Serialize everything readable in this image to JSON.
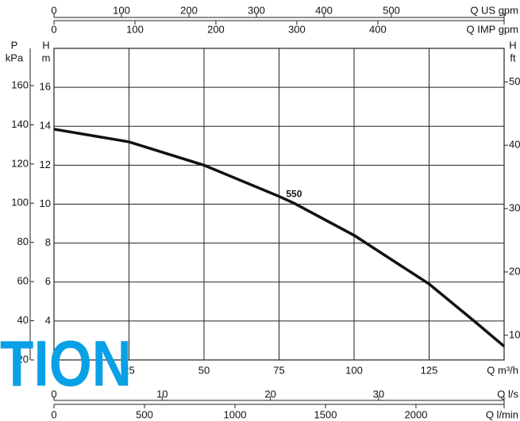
{
  "chart_data": {
    "type": "line",
    "x_label": "Q m³/h",
    "xlim": [
      0,
      150
    ],
    "xticks": [
      25,
      50,
      75,
      100,
      125
    ],
    "y_label": "H",
    "y_unit": "m",
    "ylim": [
      2,
      18
    ],
    "yticks": [
      4,
      6,
      8,
      10,
      12,
      14,
      16
    ],
    "grid": true,
    "x": [
      0,
      25,
      50,
      75,
      80,
      100,
      125,
      140,
      150
    ],
    "series": [
      {
        "name": "550",
        "color": "#111111",
        "values": [
          13.85,
          13.2,
          12,
          10.4,
          10.05,
          8.4,
          5.9,
          4.0,
          2.7
        ]
      }
    ],
    "label_at": {
      "x": 80,
      "y": 10.5
    },
    "extra_axes": [
      {
        "label": "Q US gpm",
        "position": "top-upper",
        "lim": [
          0,
          667
        ],
        "ticks": [
          0,
          100,
          200,
          300,
          400,
          500
        ]
      },
      {
        "label": "Q IMP gpm",
        "position": "top-lower",
        "lim": [
          0,
          556
        ],
        "ticks": [
          0,
          100,
          200,
          300,
          400
        ]
      },
      {
        "label": "Q l/s",
        "position": "bottom-upper",
        "lim": [
          0,
          41.6
        ],
        "ticks": [
          0,
          10,
          20,
          30
        ]
      },
      {
        "label": "Q l/min",
        "position": "bottom-lower",
        "lim": [
          0,
          2487
        ],
        "ticks": [
          0,
          500,
          1000,
          1500,
          2000
        ]
      },
      {
        "label": "P",
        "unit": "kPa",
        "position": "left",
        "lim": [
          20,
          179
        ],
        "ticks": [
          20,
          40,
          60,
          80,
          100,
          120,
          140,
          160
        ]
      },
      {
        "label": "H",
        "unit": "ft",
        "position": "right",
        "lim": [
          6.1,
          55.3
        ],
        "ticks": [
          10,
          20,
          30,
          40,
          50
        ]
      }
    ],
    "watermark": "TION",
    "watermark_color": "#0aa0e6"
  }
}
